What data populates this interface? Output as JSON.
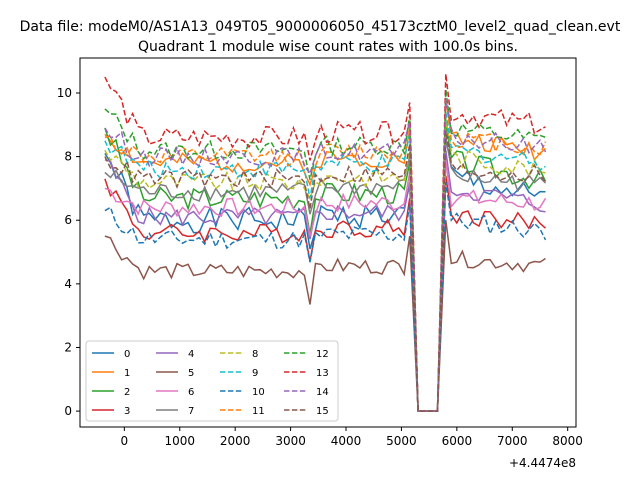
{
  "chart_data": {
    "type": "line",
    "suptitle": "Data file: modeM0/AS1A13_049T05_9000006050_45173cztM0_level2_quad_clean.evt",
    "title": "Quadrant 1 module wise count rates with 100.0s bins.",
    "xlabel": "",
    "ylabel": "",
    "x_offset_label": "+4.4474e8",
    "xlim": [
      -800,
      8150
    ],
    "ylim": [
      -0.5,
      11.1
    ],
    "xticks": [
      0,
      1000,
      2000,
      3000,
      4000,
      5000,
      6000,
      7000,
      8000
    ],
    "yticks": [
      0,
      2,
      4,
      6,
      8,
      10
    ],
    "grid": false,
    "legend_placement": "lower-left",
    "gap": {
      "x": [
        5150,
        5300,
        5650,
        5800
      ],
      "y": [
        9.0,
        0,
        0,
        9.4
      ]
    },
    "series": [
      {
        "name": "0",
        "style": "solid",
        "color": "#1f77b4",
        "base": 6.0,
        "start": 8.1,
        "post": 7.4,
        "amp": 0.4,
        "seed": 1
      },
      {
        "name": "1",
        "style": "solid",
        "color": "#ff7f0e",
        "base": 7.8,
        "start": 8.7,
        "post": 8.6,
        "amp": 0.3,
        "seed": 2
      },
      {
        "name": "2",
        "style": "solid",
        "color": "#2ca02c",
        "base": 6.7,
        "start": 8.9,
        "post": 7.9,
        "amp": 0.35,
        "seed": 3
      },
      {
        "name": "3",
        "style": "solid",
        "color": "#d62728",
        "base": 5.6,
        "start": 7.3,
        "post": 6.2,
        "amp": 0.3,
        "seed": 4
      },
      {
        "name": "4",
        "style": "solid",
        "color": "#9467bd",
        "base": 6.1,
        "start": 7.9,
        "post": 7.0,
        "amp": 0.3,
        "seed": 5
      },
      {
        "name": "5",
        "style": "solid",
        "color": "#8c564b",
        "base": 4.4,
        "start": 5.5,
        "post": 4.8,
        "amp": 0.25,
        "seed": 6
      },
      {
        "name": "6",
        "style": "solid",
        "color": "#e377c2",
        "base": 6.4,
        "start": 7.0,
        "post": 6.7,
        "amp": 0.3,
        "seed": 7
      },
      {
        "name": "7",
        "style": "solid",
        "color": "#7f7f7f",
        "base": 6.9,
        "start": 7.5,
        "post": 7.4,
        "amp": 0.3,
        "seed": 8
      },
      {
        "name": "8",
        "style": "dashed",
        "color": "#bcbd22",
        "base": 7.2,
        "start": 8.2,
        "post": 8.0,
        "amp": 0.3,
        "seed": 9
      },
      {
        "name": "9",
        "style": "dashed",
        "color": "#17becf",
        "base": 7.6,
        "start": 8.5,
        "post": 8.2,
        "amp": 0.3,
        "seed": 10
      },
      {
        "name": "10",
        "style": "dashed",
        "color": "#1f77b4",
        "base": 5.4,
        "start": 6.3,
        "post": 6.0,
        "amp": 0.3,
        "seed": 11
      },
      {
        "name": "11",
        "style": "dashed",
        "color": "#ff7f0e",
        "base": 8.0,
        "start": 8.6,
        "post": 8.6,
        "amp": 0.3,
        "seed": 12
      },
      {
        "name": "12",
        "style": "dashed",
        "color": "#2ca02c",
        "base": 8.2,
        "start": 9.5,
        "post": 8.9,
        "amp": 0.3,
        "seed": 13
      },
      {
        "name": "13",
        "style": "dashed",
        "color": "#d62728",
        "base": 8.6,
        "start": 10.5,
        "post": 9.4,
        "amp": 0.35,
        "seed": 14
      },
      {
        "name": "14",
        "style": "dashed",
        "color": "#9467bd",
        "base": 8.0,
        "start": 8.9,
        "post": 8.6,
        "amp": 0.3,
        "seed": 15
      },
      {
        "name": "15",
        "style": "dashed",
        "color": "#8c564b",
        "base": 7.3,
        "start": 8.0,
        "post": 7.6,
        "amp": 0.3,
        "seed": 16
      }
    ]
  }
}
